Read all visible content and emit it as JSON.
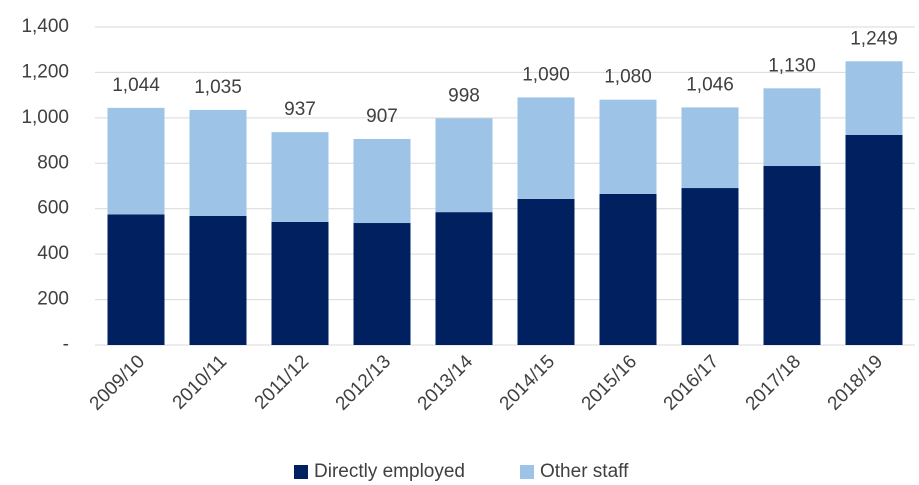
{
  "chart_data": {
    "type": "stacked_bar",
    "categories": [
      "2009/10",
      "2010/11",
      "2011/12",
      "2012/13",
      "2013/14",
      "2014/15",
      "2015/16",
      "2016/17",
      "2017/18",
      "2018/19"
    ],
    "series": [
      {
        "name": "Directly employed",
        "color": "#002060",
        "values": [
          575,
          568,
          542,
          537,
          585,
          643,
          665,
          691,
          788,
          925
        ]
      },
      {
        "name": "Other staff",
        "color": "#9dc3e6",
        "values": [
          469,
          467,
          395,
          370,
          413,
          447,
          415,
          355,
          342,
          324
        ]
      }
    ],
    "totals": [
      1044,
      1035,
      937,
      907,
      998,
      1090,
      1080,
      1046,
      1130,
      1249
    ],
    "total_labels": [
      "1,044",
      "1,035",
      "937",
      "907",
      "998",
      "1,090",
      "1,080",
      "1,046",
      "1,130",
      "1,249"
    ],
    "ylim": [
      0,
      1400
    ],
    "yticks": [
      {
        "value": 0,
        "label": "-"
      },
      200,
      400,
      600,
      800,
      {
        "value": 1000,
        "label": "1,000"
      },
      {
        "value": 1200,
        "label": "1,200"
      },
      {
        "value": 1400,
        "label": "1,400"
      }
    ],
    "grid": true,
    "legend": "bottom"
  }
}
